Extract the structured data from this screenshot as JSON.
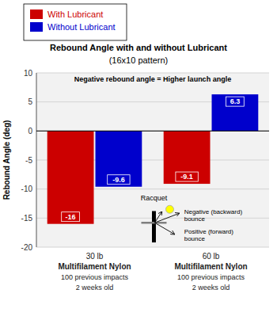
{
  "chart_data": {
    "type": "bar",
    "title": "Rebound Angle with and without Lubricant",
    "subtitle": "(16x10 pattern)",
    "y_label": "Rebound Angle (deg)",
    "categories": [
      "30 lb\nMultifilament Nylon\n100 previous impacts\n2 weeks old",
      "60 lb\nMultifilament Nylon\n100 previous impacts\n2 weeks old"
    ],
    "series": [
      {
        "name": "With Lubricant",
        "color": "#CC0000",
        "values": [
          -16,
          -9.1
        ]
      },
      {
        "name": "Without Lubricant",
        "color": "#0000CC",
        "values": [
          -9.6,
          6.3
        ]
      }
    ],
    "ylim": [
      -20,
      10
    ],
    "yticks": [
      -20,
      -15,
      -10,
      -5,
      0,
      5,
      10
    ],
    "grid": true,
    "legend": "top-left",
    "data_labels": true,
    "tick_labels": "y",
    "annotations": [
      "Negative rebound angle = Higher launch angle",
      "Racquet",
      "Negative (backward)\nbounce",
      "Positive (forward)\nbounce"
    ]
  }
}
